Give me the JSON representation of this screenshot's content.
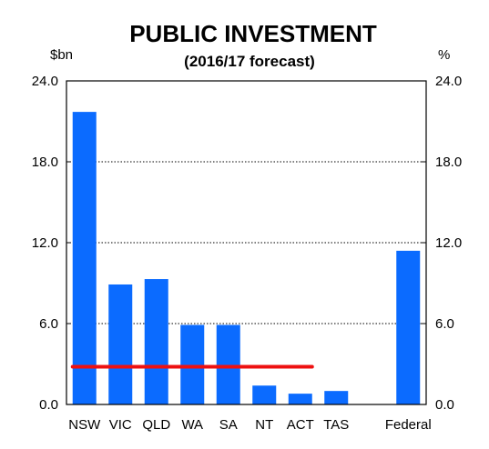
{
  "chart_data": {
    "type": "bar",
    "title": "PUBLIC INVESTMENT",
    "subtitle": "(2016/17 forecast)",
    "y_left_unit": "$bn",
    "y_right_unit": "%",
    "ylim": [
      0,
      24
    ],
    "yticks": [
      "0.0",
      "6.0",
      "12.0",
      "18.0",
      "24.0"
    ],
    "categories": [
      "NSW",
      "VIC",
      "QLD",
      "WA",
      "SA",
      "NT",
      "ACT",
      "TAS",
      "",
      "Federal"
    ],
    "values": [
      21.7,
      8.9,
      9.3,
      5.9,
      5.9,
      1.4,
      0.8,
      1.0,
      null,
      11.4
    ],
    "reference_line": {
      "value": 2.8,
      "from_category": "NSW",
      "to_category": "ACT",
      "color": "#ee1111"
    },
    "bar_color": "#0b6bff",
    "grid": {
      "horizontal": true,
      "style": "dotted"
    }
  }
}
